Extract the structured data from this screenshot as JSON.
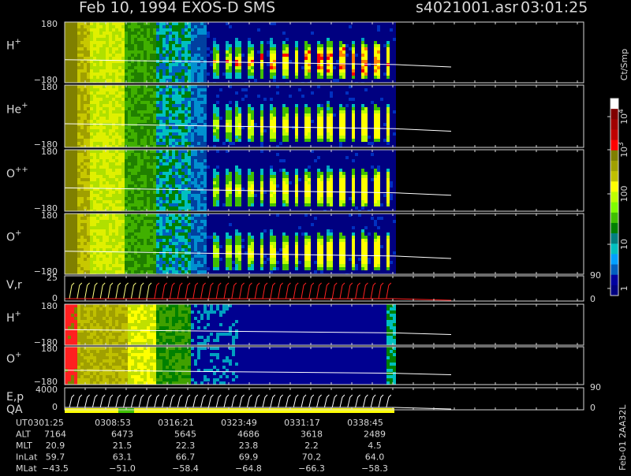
{
  "header": {
    "title": "Feb 10, 1994   EXOS-D SMS",
    "file": "s4021001.asr",
    "time": "03:01:25"
  },
  "panels": [
    {
      "label": "H",
      "sup": "+",
      "top": "180",
      "bottom": "−180"
    },
    {
      "label": "He",
      "sup": "+",
      "top": "180",
      "bottom": "−180"
    },
    {
      "label": "O",
      "sup": "++",
      "top": "180",
      "bottom": "−180"
    },
    {
      "label": "O",
      "sup": "+",
      "top": "180",
      "bottom": "−180"
    },
    {
      "label": "V,r",
      "sup": "",
      "top": "25",
      "bottom": "0",
      "right_top": "90",
      "right_bottom": "0"
    },
    {
      "label": "H",
      "sup": "+",
      "top": "180",
      "bottom": "−180"
    },
    {
      "label": "O",
      "sup": "+",
      "top": "180",
      "bottom": "−180"
    },
    {
      "label": "E,p",
      "sup": "",
      "top": "4000",
      "bottom": "0",
      "label2": "QA",
      "right_top": "90",
      "right_bottom": "0"
    }
  ],
  "colorbar": {
    "unit": "Ct/Smp",
    "ticks": [
      {
        "base": "10",
        "exp": "4"
      },
      {
        "base": "10",
        "exp": "3"
      },
      {
        "base": "100",
        "exp": ""
      },
      {
        "base": "10",
        "exp": ""
      },
      {
        "base": "1",
        "exp": ""
      }
    ]
  },
  "table": {
    "rows": [
      {
        "label": "UT",
        "values": [
          "0301:25",
          "0308:53",
          "0316:21",
          "0323:49",
          "0331:17",
          "0338:45"
        ]
      },
      {
        "label": "ALT",
        "values": [
          "7164",
          "6473",
          "5645",
          "4686",
          "3618",
          "2489"
        ]
      },
      {
        "label": "MLT",
        "values": [
          "20.9",
          "21.5",
          "22.3",
          "23.8",
          "2.2",
          "4.5"
        ]
      },
      {
        "label": "InLat",
        "values": [
          "59.7",
          "63.1",
          "66.7",
          "69.9",
          "70.2",
          "64.0"
        ]
      },
      {
        "label": "MLat",
        "values": [
          "−43.5",
          "−51.0",
          "−58.4",
          "−64.8",
          "−66.3",
          "−58.3"
        ]
      }
    ]
  },
  "footer_note": "Feb-01 2AA32L"
}
